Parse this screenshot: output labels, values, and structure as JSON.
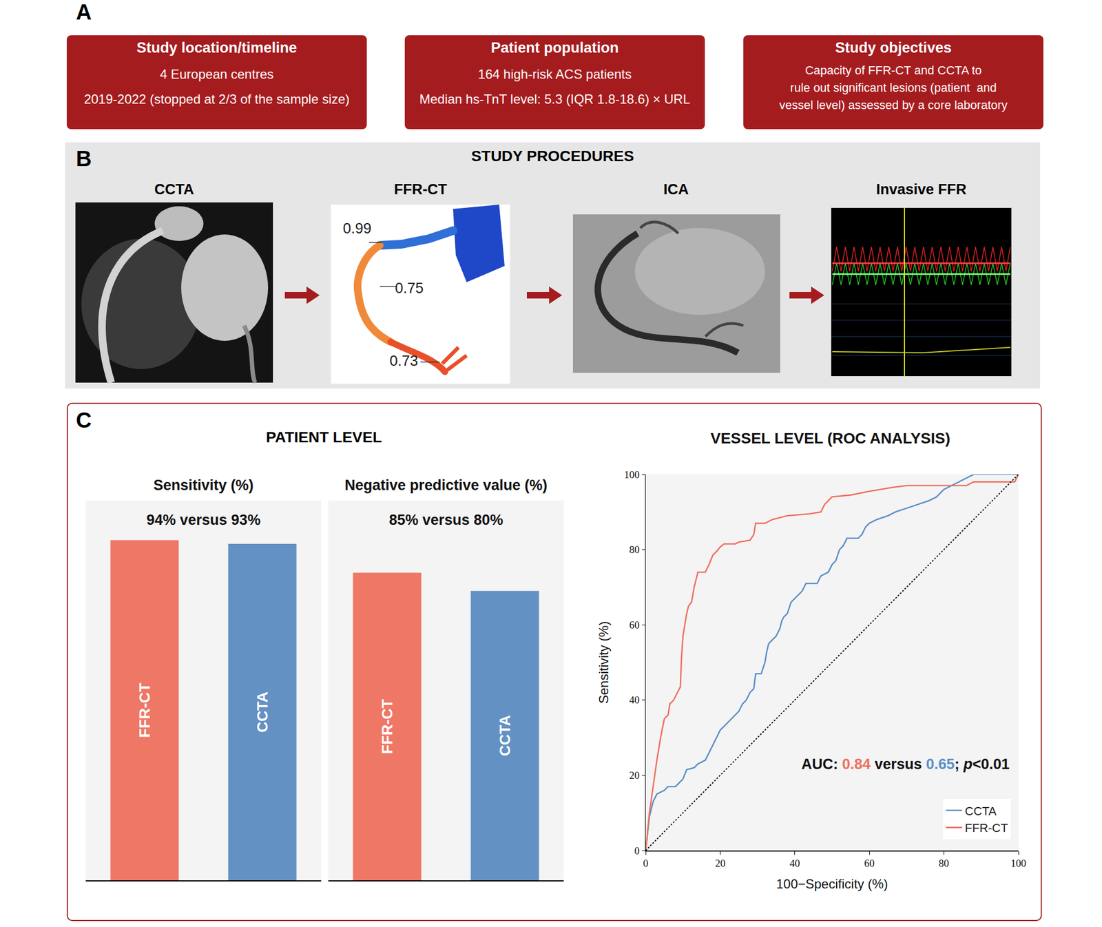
{
  "panel_a": {
    "letter": "A",
    "boxes": [
      {
        "title": "Study location/timeline",
        "lines": [
          "4 European centres",
          "2019-2022 (stopped at 2/3 of the sample size)"
        ]
      },
      {
        "title": "Patient population",
        "lines": [
          "164 high-risk ACS patients",
          "Median hs-TnT level: 5.3 (IQR 1.8-18.6) × URL"
        ]
      },
      {
        "title": "Study objectives",
        "lines": [
          "Capacity of FFR-CT and CCTA to",
          "rule out significant lesions (patient  and",
          "vessel level) assessed by a core laboratory"
        ]
      }
    ]
  },
  "panel_b": {
    "letter": "B",
    "title": "STUDY PROCEDURES",
    "steps": [
      "CCTA",
      "FFR-CT",
      "ICA",
      "Invasive FFR"
    ],
    "ffr_ct_values": [
      "0.99",
      "0.75",
      "0.73"
    ]
  },
  "panel_c": {
    "letter": "C",
    "heading": "PATIENT LEVEL"
  },
  "chart_data": [
    {
      "type": "bar",
      "title": "Sensitivity (%)",
      "subtitle": "94% versus 93%",
      "categories": [
        "FFR-CT",
        "CCTA"
      ],
      "values": [
        94,
        93
      ],
      "colors": [
        "#ef7766",
        "#6491c3"
      ],
      "ylim": [
        0,
        105
      ],
      "tick_labels": false,
      "grid": false
    },
    {
      "type": "bar",
      "title": "Negative predictive value (%)",
      "subtitle": "85% versus 80%",
      "categories": [
        "FFR-CT",
        "CCTA"
      ],
      "values": [
        85,
        80
      ],
      "colors": [
        "#ef7766",
        "#6491c3"
      ],
      "ylim": [
        0,
        105
      ],
      "tick_labels": false,
      "grid": false
    },
    {
      "type": "line",
      "title": "VESSEL LEVEL (ROC ANALYSIS)",
      "xlabel": "100−Specificity (%)",
      "ylabel": "Sensitivity (%)",
      "xlim": [
        0,
        100
      ],
      "ylim": [
        0,
        100
      ],
      "xticks": [
        0,
        20,
        40,
        60,
        80,
        100
      ],
      "yticks": [
        0,
        20,
        40,
        60,
        80,
        100
      ],
      "grid": false,
      "legend": "lower right",
      "series": [
        {
          "name": "CCTA",
          "color": "#5b8fc9",
          "x": [
            0,
            0.5,
            1,
            1.5,
            2,
            3,
            5,
            6,
            8,
            9,
            10,
            11,
            13,
            14,
            16,
            17,
            18,
            19,
            20,
            21,
            22,
            23,
            24,
            25,
            26,
            27,
            28,
            29,
            29.5,
            31,
            32,
            32.5,
            33,
            34,
            35,
            36,
            36.5,
            37,
            38,
            39,
            40,
            41,
            42,
            43,
            46,
            47,
            49,
            50,
            51,
            52,
            53,
            54,
            57,
            58,
            59,
            60,
            62,
            65,
            67,
            70,
            73,
            76,
            78,
            79,
            80,
            82,
            84,
            86,
            88,
            100
          ],
          "values": [
            0,
            5,
            9,
            11,
            13,
            15,
            16,
            17,
            17,
            18,
            19,
            21.5,
            22,
            23,
            24,
            26,
            28,
            30,
            32,
            33,
            34,
            35,
            36,
            37,
            39,
            40,
            42,
            43,
            47,
            47,
            50,
            53,
            55,
            56,
            57,
            59,
            61,
            62,
            63,
            66,
            67,
            68,
            69,
            71,
            71,
            73,
            74,
            76,
            77,
            80,
            81,
            83,
            83,
            84,
            86,
            87,
            88,
            89,
            90,
            91,
            92,
            93,
            94,
            95,
            96,
            97,
            98,
            99,
            100,
            100
          ]
        },
        {
          "name": "FFR-CT",
          "color": "#ef6f5f",
          "x": [
            0,
            0.5,
            1,
            2,
            3,
            4,
            5,
            6,
            6.5,
            7.5,
            8.5,
            9.3,
            9.6,
            10,
            10.5,
            11,
            11.5,
            12.3,
            13,
            14,
            16,
            17,
            18,
            19,
            20,
            21,
            24,
            25,
            28,
            29,
            29.5,
            32,
            34,
            38,
            44,
            47,
            48,
            50,
            55,
            60,
            66,
            70,
            80,
            86,
            88,
            99,
            100
          ],
          "values": [
            0,
            5,
            10,
            17,
            24,
            30,
            35,
            36,
            39,
            40,
            42,
            43.5,
            51,
            57,
            60,
            63,
            65,
            66,
            70,
            74,
            74,
            76,
            78.5,
            79.5,
            80.7,
            81.5,
            81.5,
            82,
            82.5,
            84,
            87,
            87,
            88,
            89,
            89.5,
            90,
            92,
            94,
            94.5,
            95.5,
            96.5,
            97,
            97,
            97,
            98,
            98,
            100
          ]
        },
        {
          "color": "#000000",
          "line_style": "dotted",
          "x": [
            0,
            100
          ],
          "values": [
            0,
            100
          ]
        }
      ],
      "annotation": {
        "parts": [
          {
            "text": "AUC: "
          },
          {
            "text": "0.84",
            "color": "#ef6f5f"
          },
          {
            "text": " versus "
          },
          {
            "text": "0.65",
            "color": "#5b8fc9"
          },
          {
            "text": "; "
          },
          {
            "text": "p",
            "italic": true
          },
          {
            "text": "<0.01"
          }
        ]
      }
    }
  ]
}
